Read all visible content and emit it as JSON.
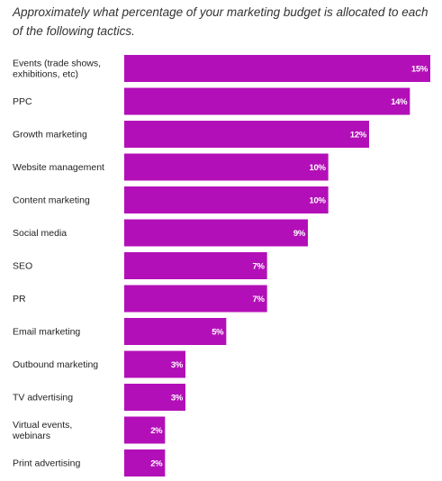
{
  "chart_data": {
    "type": "bar",
    "orientation": "horizontal",
    "title": "Approximately what percentage of your marketing budget is allocated to each of the following tactics.",
    "categories": [
      [
        "Events (trade shows,",
        "exhibitions, etc)"
      ],
      [
        "PPC"
      ],
      [
        "Growth marketing"
      ],
      [
        "Website management"
      ],
      [
        "Content marketing"
      ],
      [
        "Social media"
      ],
      [
        "SEO"
      ],
      [
        "PR"
      ],
      [
        "Email marketing"
      ],
      [
        "Outbound marketing"
      ],
      [
        "TV advertising"
      ],
      [
        "Virtual events,",
        "webinars"
      ],
      [
        "Print advertising"
      ]
    ],
    "values": [
      15,
      14,
      12,
      10,
      10,
      9,
      7,
      7,
      5,
      3,
      3,
      2,
      2
    ],
    "value_labels": [
      "15%",
      "14%",
      "12%",
      "10%",
      "10%",
      "9%",
      "7%",
      "7%",
      "5%",
      "3%",
      "3%",
      "2%",
      "2%"
    ],
    "xlim": [
      0,
      15
    ],
    "bar_color": "#b30fb8",
    "grid": false,
    "legend": "none"
  }
}
